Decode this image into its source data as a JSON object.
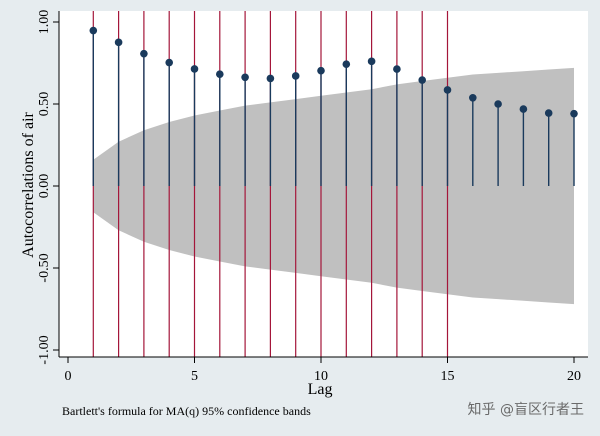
{
  "chart_data": {
    "type": "scatter",
    "title": "",
    "xlabel": "Lag",
    "ylabel": "Autocorrelations of air",
    "xlim": [
      0,
      20
    ],
    "ylim": [
      -1.0,
      1.0
    ],
    "x_ticks": [
      0,
      5,
      10,
      15,
      20
    ],
    "x_tick_labels": [
      "0",
      "5",
      "10",
      "15",
      "20"
    ],
    "y_ticks": [
      1.0,
      0.5,
      0.0,
      -0.5,
      -1.0
    ],
    "y_tick_labels": [
      "1.00",
      "0.50",
      "0.00",
      "-0.50",
      "-1.00"
    ],
    "grid": false,
    "series": [
      {
        "x": [
          1,
          2,
          3,
          4,
          5,
          6,
          7,
          8,
          9,
          10,
          11,
          12,
          13,
          14,
          15,
          16,
          17,
          18,
          19,
          20
        ],
        "values": [
          0.948,
          0.876,
          0.807,
          0.753,
          0.714,
          0.682,
          0.663,
          0.656,
          0.671,
          0.703,
          0.743,
          0.76,
          0.713,
          0.646,
          0.586,
          0.538,
          0.5,
          0.469,
          0.445,
          0.441
        ]
      }
    ],
    "confidence_band": {
      "x": [
        1,
        2,
        3,
        4,
        5,
        6,
        7,
        8,
        9,
        10,
        11,
        12,
        13,
        14,
        15,
        16,
        17,
        18,
        19,
        20
      ],
      "upper": [
        0.16,
        0.27,
        0.34,
        0.39,
        0.43,
        0.46,
        0.49,
        0.51,
        0.53,
        0.55,
        0.57,
        0.59,
        0.62,
        0.64,
        0.66,
        0.68,
        0.69,
        0.7,
        0.71,
        0.72
      ]
    },
    "reference_lines_x": [
      1,
      2,
      3,
      4,
      5,
      6,
      7,
      8,
      9,
      10,
      11,
      12,
      13,
      14,
      15
    ],
    "note": "Bartlett's formula for MA(q) 95% confidence bands",
    "colors": {
      "points": "#1a3a5c",
      "stems": "#1a3a5c",
      "band": "#c0c0c0",
      "reference_lines": "#a4163a",
      "frame": "#e6ecef"
    }
  },
  "watermark": "知乎 @盲区行者王"
}
